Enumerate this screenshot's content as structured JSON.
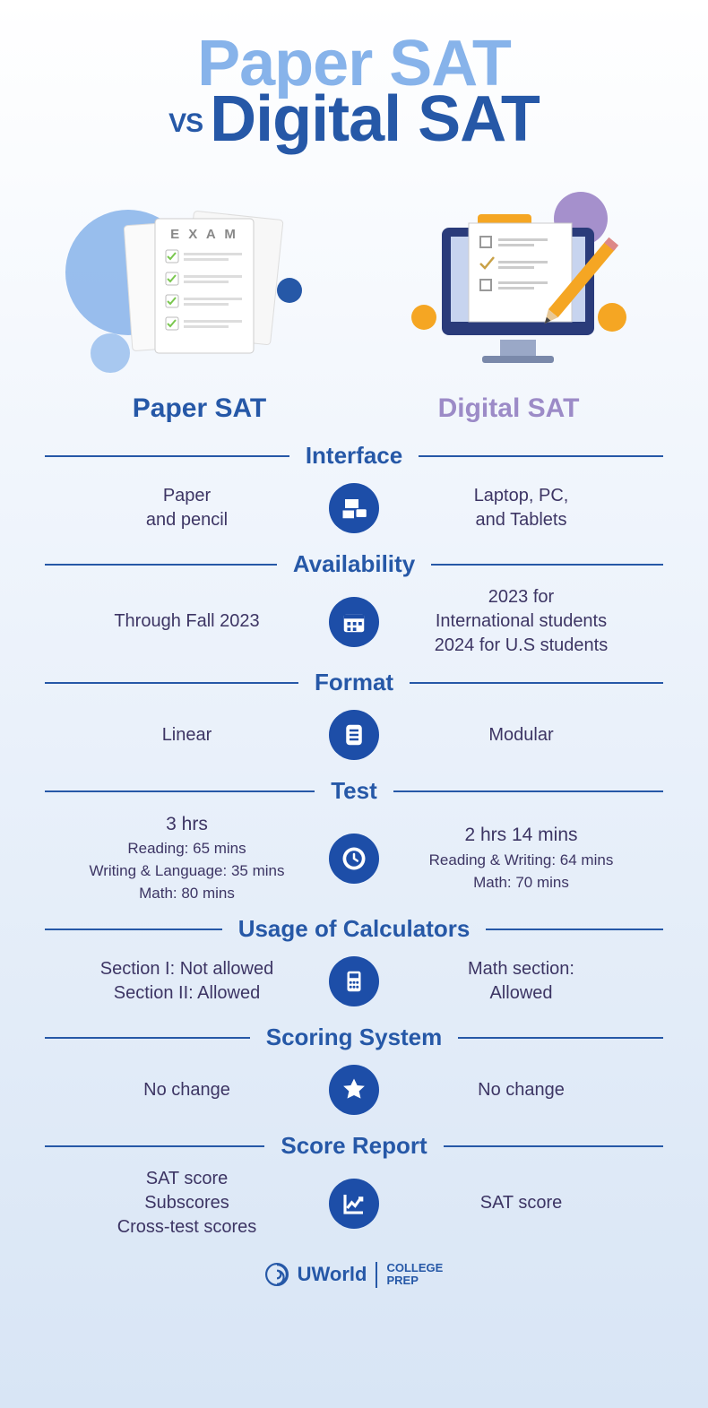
{
  "colors": {
    "light_blue": "#87b3ea",
    "dark_blue": "#2658a7",
    "purple": "#3d3564",
    "lavender": "#9c8bc7",
    "orange": "#f5a623",
    "circle_blue": "#1d4ea8",
    "dot_purple": "#a590cc",
    "paper_green": "#7ac74f"
  },
  "title": {
    "line1": "Paper SAT",
    "vs": "VS",
    "line2": "Digital SAT"
  },
  "columns": {
    "left": "Paper SAT",
    "right": "Digital SAT"
  },
  "exam_label": "E X A M",
  "sections": [
    {
      "title": "Interface",
      "icon": "devices",
      "left": [
        "Paper",
        "and pencil"
      ],
      "right": [
        "Laptop, PC,",
        "and Tablets"
      ]
    },
    {
      "title": "Availability",
      "icon": "calendar",
      "left": [
        "Through Fall 2023"
      ],
      "right": [
        "2023 for",
        "International students",
        "2024 for U.S students"
      ]
    },
    {
      "title": "Format",
      "icon": "doc",
      "left": [
        "Linear"
      ],
      "right": [
        "Modular"
      ]
    },
    {
      "title": "Test",
      "icon": "clock",
      "left_main": "3 hrs",
      "left_sub": [
        "Reading: 65 mins",
        "Writing & Language: 35 mins",
        "Math: 80 mins"
      ],
      "right_main": "2 hrs 14 mins",
      "right_sub": [
        "Reading & Writing: 64 mins",
        "Math: 70 mins"
      ]
    },
    {
      "title": "Usage of Calculators",
      "icon": "calculator",
      "left": [
        "Section I: Not allowed",
        "Section II: Allowed"
      ],
      "right": [
        "Math section:",
        "Allowed"
      ]
    },
    {
      "title": "Scoring System",
      "icon": "star",
      "left": [
        "No change"
      ],
      "right": [
        "No change"
      ]
    },
    {
      "title": "Score Report",
      "icon": "chart",
      "left": [
        "SAT score",
        "Subscores",
        "Cross-test scores"
      ],
      "right": [
        "SAT score"
      ]
    }
  ],
  "footer": {
    "brand": "UWorld",
    "sub1": "COLLEGE",
    "sub2": "PREP"
  }
}
